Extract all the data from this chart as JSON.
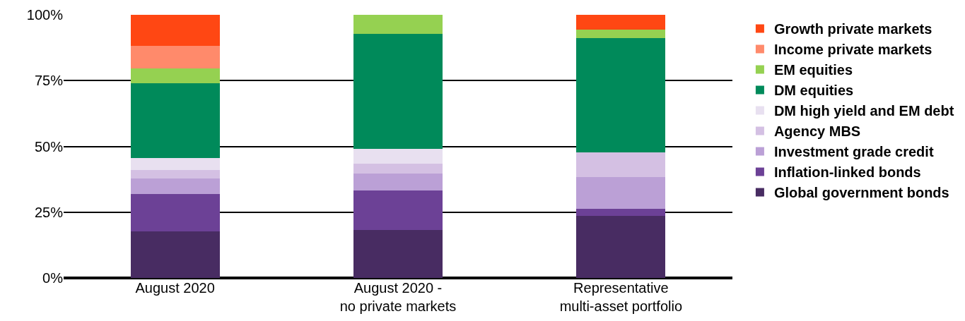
{
  "chart_data": {
    "type": "bar",
    "stacked": true,
    "categories": [
      "August 2020",
      "August 2020 -\nno private markets",
      "Representative\nmulti-asset portfolio"
    ],
    "series": [
      {
        "name": "Global government bonds",
        "color": "#482c62",
        "values": [
          17.6,
          18.3,
          23.6
        ]
      },
      {
        "name": "Inflation-linked bonds",
        "color": "#6c4196",
        "values": [
          14.3,
          15.0,
          2.8
        ]
      },
      {
        "name": "Investment grade credit",
        "color": "#bba0d6",
        "values": [
          5.8,
          6.4,
          12.0
        ]
      },
      {
        "name": "Agency MBS",
        "color": "#d4c0e3",
        "values": [
          3.3,
          3.8,
          9.2
        ]
      },
      {
        "name": "DM high yield and EM debt",
        "color": "#e8e0f0",
        "values": [
          4.6,
          5.6,
          0
        ]
      },
      {
        "name": "DM equities",
        "color": "#008a5a",
        "values": [
          28.4,
          43.7,
          43.6
        ]
      },
      {
        "name": "EM equities",
        "color": "#95d151",
        "values": [
          5.6,
          7.2,
          3.3
        ]
      },
      {
        "name": "Income private markets",
        "color": "#ff8a6b",
        "values": [
          8.5,
          0,
          0
        ]
      },
      {
        "name": "Growth private markets",
        "color": "#ff4713",
        "values": [
          11.9,
          0,
          5.5
        ]
      }
    ],
    "ylim": [
      0,
      100
    ],
    "yticks": [
      {
        "value": 0,
        "label": "0%"
      },
      {
        "value": 25,
        "label": "25%"
      },
      {
        "value": 50,
        "label": "50%"
      },
      {
        "value": 75,
        "label": "75%"
      },
      {
        "value": 100,
        "label": "100%"
      }
    ],
    "grid": "y",
    "legend": "right"
  }
}
